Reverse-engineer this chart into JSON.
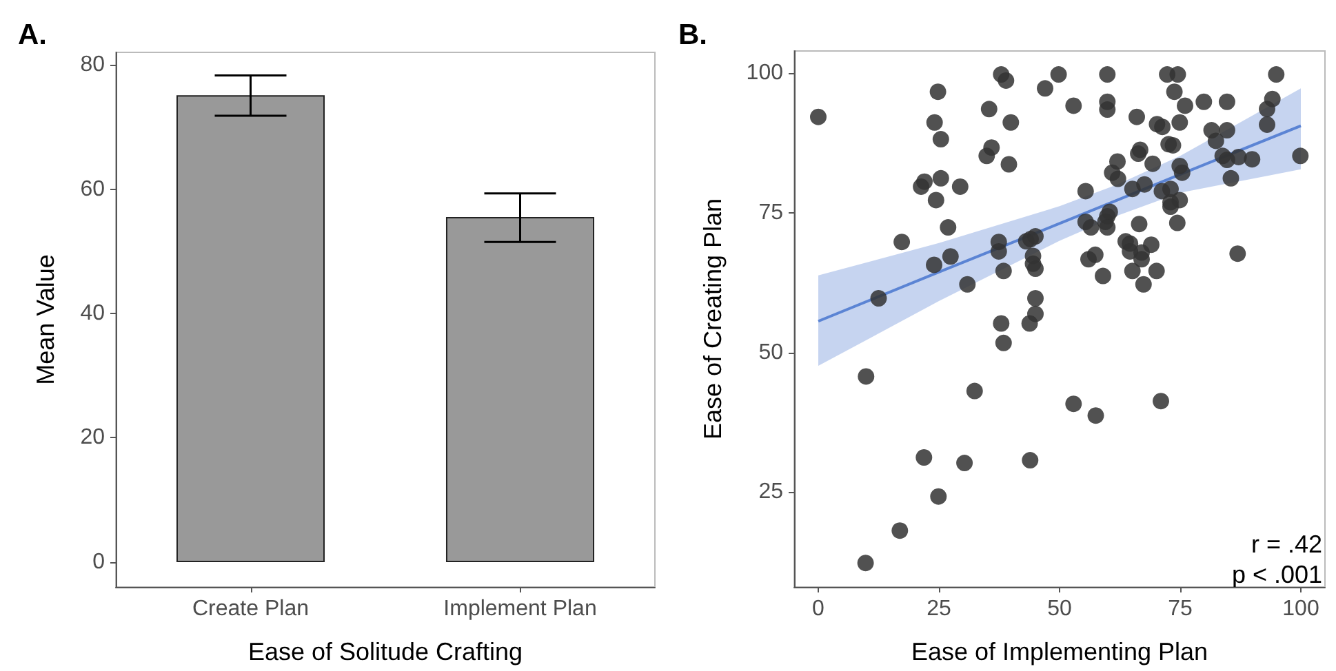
{
  "chart_data": [
    {
      "type": "bar",
      "title": "A.",
      "xlabel": "Ease of Solitude Crafting",
      "ylabel": "Mean Value",
      "categories": [
        "Create Plan",
        "Implement Plan"
      ],
      "values": [
        75.1,
        55.5
      ],
      "errors": [
        [
          71.8,
          78.3
        ],
        [
          51.5,
          59.3
        ]
      ],
      "color": "#999999",
      "ylim": [
        -4,
        82
      ],
      "yticks": [
        0,
        20,
        40,
        60,
        80
      ],
      "grid": false
    },
    {
      "type": "scatter",
      "title": "B.",
      "xlabel": "Ease of Implementing Plan",
      "ylabel": "Ease of Creating Plan",
      "xlim": [
        -5,
        105
      ],
      "ylim": [
        8,
        104
      ],
      "xticks": [
        0,
        25,
        50,
        75,
        100
      ],
      "yticks": [
        25,
        50,
        75,
        100
      ],
      "grid": false,
      "annotations": [
        "r = .42",
        "p < .001"
      ],
      "series": [
        {
          "type": "scatter",
          "color": "#333333",
          "marker": "circle",
          "x": [
            0,
            24.8,
            24.1,
            25.4,
            22,
            21.3,
            25.4,
            24.4,
            29.4,
            26.9,
            17.3,
            12.5,
            24,
            27.4,
            30.9,
            37.9,
            38.9,
            35.4,
            39.9,
            35.9,
            34.9,
            39.5,
            47,
            49.8,
            37.4,
            37.4,
            38.4,
            37.9,
            38.4,
            43.1,
            44,
            45,
            44.5,
            44.5,
            45,
            45,
            45,
            43.8,
            9.9,
            32.4,
            21.9,
            30.3,
            43.9,
            24.9,
            16.9,
            9.8,
            52.9,
            57.5,
            71,
            59.9,
            72.3,
            74.5,
            73.8,
            94.9,
            52.9,
            59.9,
            59.9,
            66,
            76,
            79.9,
            84.7,
            94.1,
            93,
            93,
            70.2,
            71.3,
            74.9,
            72.6,
            73.5,
            81.5,
            84.7,
            82.4,
            66.7,
            66.3,
            62,
            69.3,
            74.9,
            75.4,
            83.8,
            84.7,
            87.1,
            89.9,
            99.9,
            85.5,
            60.9,
            62.1,
            55.4,
            65.1,
            67.6,
            71.2,
            73,
            74.9,
            73,
            73,
            60.4,
            59.9,
            59.5,
            59.9,
            55.4,
            56.5,
            66.5,
            74.4,
            63.7,
            64.6,
            64.6,
            67,
            67,
            69,
            57.4,
            56,
            59,
            65.1,
            70.1,
            67.4,
            86.9
          ],
          "values": [
            92.2,
            96.7,
            91.2,
            88.2,
            80.6,
            79.7,
            81.2,
            77.3,
            79.7,
            72.4,
            69.8,
            59.7,
            65.7,
            67.2,
            62.2,
            99.8,
            98.7,
            93.6,
            91.2,
            86.7,
            85.2,
            83.7,
            97.3,
            99.8,
            69.8,
            68.1,
            64.6,
            55.2,
            51.7,
            69.9,
            70.3,
            70.8,
            67.3,
            65.9,
            65,
            59.7,
            56.9,
            55.2,
            45.7,
            43.1,
            31.2,
            30.2,
            30.7,
            24.2,
            18.1,
            12.3,
            40.8,
            38.7,
            41.3,
            99.8,
            99.8,
            99.8,
            96.7,
            99.8,
            94.2,
            94.9,
            93.5,
            92.2,
            94.2,
            94.9,
            94.9,
            95.4,
            93.6,
            90.8,
            90.9,
            90.4,
            91.2,
            87.3,
            87.1,
            89.8,
            89.8,
            87.9,
            86.3,
            85.6,
            84.2,
            83.8,
            83.4,
            82.2,
            85.2,
            84.5,
            85,
            84.6,
            85.2,
            81.2,
            82.2,
            81.1,
            78.9,
            79.3,
            80.1,
            78.9,
            79.3,
            77.3,
            76.9,
            76.1,
            75.2,
            74.4,
            73.4,
            72.4,
            73.4,
            72.4,
            73,
            73.2,
            69.9,
            69.5,
            68.1,
            67.9,
            66.7,
            69.3,
            67.5,
            66.7,
            63.7,
            64.6,
            64.6,
            62.2,
            67.7
          ]
        },
        {
          "type": "line",
          "color": "#5b84d4",
          "x": [
            0,
            25,
            50,
            62,
            75,
            100
          ],
          "values": [
            55.6,
            64.4,
            73.1,
            77.3,
            81.9,
            90.6
          ],
          "lower": [
            47.6,
            59.2,
            70,
            74.5,
            78.6,
            82.8
          ],
          "upper": [
            63.8,
            69.6,
            76.2,
            80.1,
            85.2,
            97.3
          ]
        }
      ]
    }
  ]
}
